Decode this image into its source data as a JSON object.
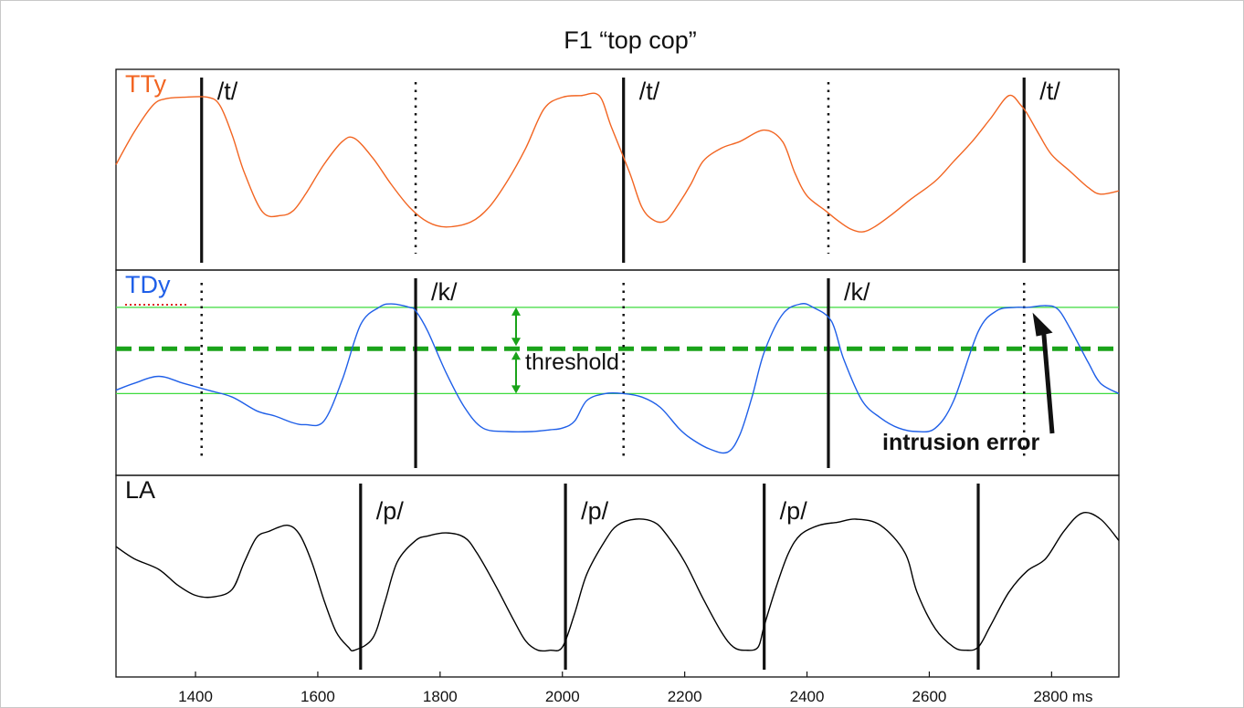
{
  "chart_data": {
    "type": "line",
    "title": "F1 “top cop”",
    "x_unit": "ms",
    "xlim": [
      1270,
      2910
    ],
    "x_ticks": [
      {
        "value": 1400,
        "label": "1400"
      },
      {
        "value": 1600,
        "label": "1600"
      },
      {
        "value": 1800,
        "label": "1800"
      },
      {
        "value": 2000,
        "label": "2000"
      },
      {
        "value": 2200,
        "label": "2200"
      },
      {
        "value": 2400,
        "label": "2400"
      },
      {
        "value": 2600,
        "label": "2600"
      },
      {
        "value": 2800,
        "label": "2800 ms"
      }
    ],
    "grid": false,
    "panels": [
      {
        "label": "TTy",
        "color": "#f26522",
        "label_color": "#f26522",
        "ylim": [
          0,
          1
        ],
        "series": {
          "x": [
            1270,
            1300,
            1330,
            1350,
            1380,
            1420,
            1440,
            1460,
            1480,
            1510,
            1540,
            1560,
            1580,
            1610,
            1640,
            1660,
            1690,
            1720,
            1750,
            1780,
            1810,
            1850,
            1880,
            1910,
            1940,
            1970,
            2000,
            2030,
            2060,
            2080,
            2110,
            2130,
            2150,
            2170,
            2190,
            2210,
            2230,
            2260,
            2290,
            2330,
            2360,
            2380,
            2400,
            2430,
            2450,
            2470,
            2490,
            2510,
            2540,
            2570,
            2610,
            2640,
            2670,
            2700,
            2730,
            2750,
            2760,
            2780,
            2800,
            2830,
            2860,
            2880,
            2910
          ],
          "y": [
            0.52,
            0.72,
            0.88,
            0.92,
            0.93,
            0.93,
            0.88,
            0.7,
            0.47,
            0.23,
            0.21,
            0.24,
            0.34,
            0.52,
            0.66,
            0.68,
            0.56,
            0.4,
            0.26,
            0.17,
            0.14,
            0.17,
            0.26,
            0.42,
            0.62,
            0.86,
            0.93,
            0.94,
            0.94,
            0.75,
            0.47,
            0.26,
            0.18,
            0.18,
            0.28,
            0.4,
            0.54,
            0.62,
            0.66,
            0.73,
            0.66,
            0.47,
            0.33,
            0.24,
            0.18,
            0.13,
            0.11,
            0.14,
            0.22,
            0.31,
            0.42,
            0.54,
            0.66,
            0.8,
            0.94,
            0.88,
            0.83,
            0.7,
            0.58,
            0.48,
            0.38,
            0.34,
            0.36
          ]
        },
        "markers": [
          {
            "x": 1410,
            "style": "solid",
            "label": "/t/"
          },
          {
            "x": 1760,
            "style": "dotted",
            "label": ""
          },
          {
            "x": 2100,
            "style": "solid",
            "label": "/t/"
          },
          {
            "x": 2435,
            "style": "dotted",
            "label": ""
          },
          {
            "x": 2755,
            "style": "solid",
            "label": "/t/"
          }
        ]
      },
      {
        "label": "TDy",
        "color": "#1f5fe8",
        "label_color": "#1f5fe8",
        "ylim": [
          0,
          1
        ],
        "threshold": {
          "label": "threshold",
          "upper": 0.9,
          "middle": 0.66,
          "lower": 0.4,
          "color": "#1aa31a"
        },
        "series": {
          "x": [
            1270,
            1300,
            1340,
            1380,
            1420,
            1460,
            1500,
            1530,
            1560,
            1580,
            1610,
            1640,
            1670,
            1700,
            1720,
            1750,
            1760,
            1780,
            1810,
            1840,
            1870,
            1910,
            1950,
            1980,
            2000,
            2020,
            2040,
            2070,
            2100,
            2130,
            2160,
            2190,
            2210,
            2240,
            2270,
            2290,
            2310,
            2330,
            2360,
            2390,
            2410,
            2440,
            2460,
            2490,
            2520,
            2550,
            2580,
            2610,
            2640,
            2680,
            2710,
            2740,
            2760,
            2790,
            2810,
            2830,
            2860,
            2880,
            2910
          ],
          "y": [
            0.42,
            0.46,
            0.5,
            0.46,
            0.42,
            0.38,
            0.3,
            0.27,
            0.23,
            0.22,
            0.24,
            0.48,
            0.8,
            0.9,
            0.92,
            0.9,
            0.88,
            0.76,
            0.52,
            0.32,
            0.2,
            0.18,
            0.18,
            0.19,
            0.2,
            0.24,
            0.36,
            0.4,
            0.4,
            0.38,
            0.32,
            0.2,
            0.14,
            0.08,
            0.06,
            0.16,
            0.38,
            0.64,
            0.86,
            0.92,
            0.9,
            0.82,
            0.6,
            0.36,
            0.26,
            0.2,
            0.18,
            0.2,
            0.36,
            0.76,
            0.88,
            0.9,
            0.9,
            0.91,
            0.89,
            0.78,
            0.58,
            0.46,
            0.4
          ]
        },
        "markers": [
          {
            "x": 1410,
            "style": "dotted",
            "label": ""
          },
          {
            "x": 1760,
            "style": "solid",
            "label": "/k/"
          },
          {
            "x": 2100,
            "style": "dotted",
            "label": ""
          },
          {
            "x": 2435,
            "style": "solid",
            "label": "/k/"
          },
          {
            "x": 2755,
            "style": "dotted",
            "label": ""
          }
        ],
        "annotation": {
          "text": "intrusion error",
          "arrow_target_x": 2760
        }
      },
      {
        "label": "LA",
        "color": "#000000",
        "label_color": "#111111",
        "ylim": [
          0,
          1
        ],
        "series": {
          "x": [
            1270,
            1300,
            1340,
            1370,
            1400,
            1430,
            1460,
            1480,
            1500,
            1520,
            1550,
            1570,
            1590,
            1610,
            1630,
            1650,
            1660,
            1690,
            1710,
            1730,
            1760,
            1780,
            1810,
            1840,
            1860,
            1890,
            1920,
            1940,
            1960,
            1980,
            2000,
            2020,
            2040,
            2070,
            2090,
            2120,
            2150,
            2170,
            2200,
            2230,
            2260,
            2280,
            2300,
            2320,
            2330,
            2350,
            2370,
            2390,
            2420,
            2450,
            2480,
            2520,
            2560,
            2580,
            2610,
            2640,
            2660,
            2680,
            2700,
            2730,
            2760,
            2790,
            2820,
            2850,
            2880,
            2910
          ],
          "y": [
            0.7,
            0.62,
            0.55,
            0.45,
            0.38,
            0.37,
            0.42,
            0.6,
            0.76,
            0.8,
            0.84,
            0.78,
            0.6,
            0.35,
            0.14,
            0.04,
            0.02,
            0.1,
            0.34,
            0.6,
            0.74,
            0.77,
            0.79,
            0.76,
            0.66,
            0.45,
            0.22,
            0.08,
            0.02,
            0.02,
            0.04,
            0.26,
            0.52,
            0.74,
            0.84,
            0.88,
            0.86,
            0.78,
            0.6,
            0.36,
            0.14,
            0.04,
            0.02,
            0.04,
            0.18,
            0.44,
            0.66,
            0.78,
            0.84,
            0.86,
            0.88,
            0.84,
            0.66,
            0.4,
            0.16,
            0.04,
            0.02,
            0.04,
            0.18,
            0.4,
            0.54,
            0.62,
            0.8,
            0.92,
            0.88,
            0.74
          ]
        },
        "markers": [
          {
            "x": 1670,
            "style": "solid",
            "label": "/p/"
          },
          {
            "x": 2005,
            "style": "solid",
            "label": "/p/"
          },
          {
            "x": 2330,
            "style": "solid",
            "label": "/p/"
          },
          {
            "x": 2680,
            "style": "solid",
            "label": ""
          }
        ]
      }
    ]
  }
}
